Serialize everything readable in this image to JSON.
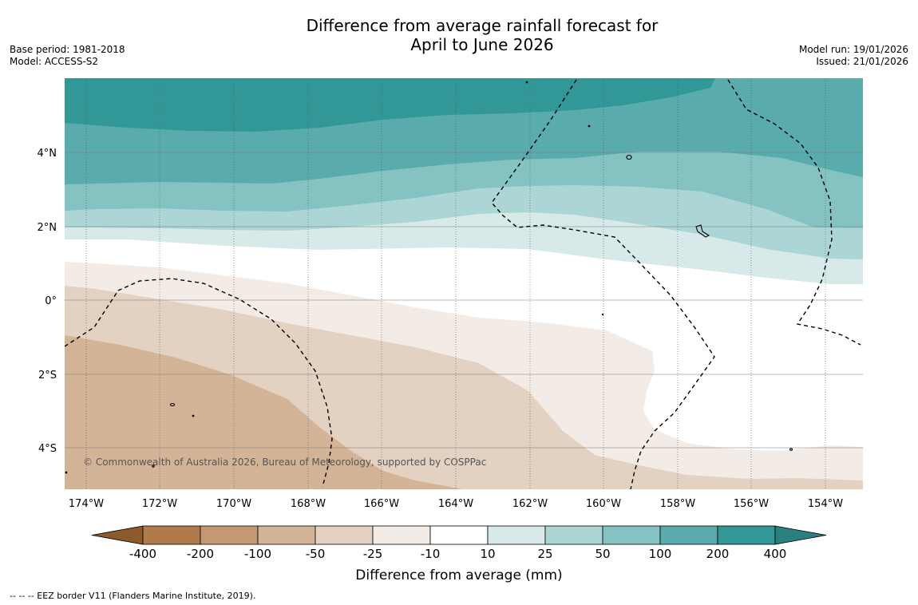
{
  "title": {
    "line1": "Difference from average rainfall forecast for",
    "line2": "April to June 2026"
  },
  "meta": {
    "base_period": "Base period: 1981-2018",
    "model": "Model: ACCESS-S2",
    "model_run": "Model run: 19/01/2026",
    "issued": "Issued: 21/01/2026"
  },
  "map": {
    "lon_labels": [
      "174°W",
      "172°W",
      "170°W",
      "168°W",
      "166°W",
      "164°W",
      "162°W",
      "160°W",
      "158°W",
      "156°W",
      "154°W"
    ],
    "lat_labels": [
      "4°N",
      "2°N",
      "0°",
      "2°S",
      "4°S"
    ],
    "copyright": "© Commonwealth of Australia 2026, Bureau of Meteorology, supported by COSPPac"
  },
  "legend": {
    "ticks": [
      "-400",
      "-200",
      "-100",
      "-50",
      "-25",
      "-10",
      "10",
      "25",
      "50",
      "100",
      "200",
      "400"
    ],
    "colors": [
      "#8c5a2b",
      "#b07b49",
      "#c49873",
      "#d4b496",
      "#e3d1c1",
      "#f3ece6",
      "#ffffff",
      "#d7eae9",
      "#acd6d5",
      "#84c3c2",
      "#5aabab",
      "#329897",
      "#2a7f7f"
    ],
    "label": "Difference from average (mm)"
  },
  "footer": "--  --  -- EEZ border V11 (Flanders Marine Institute, 2019)."
}
